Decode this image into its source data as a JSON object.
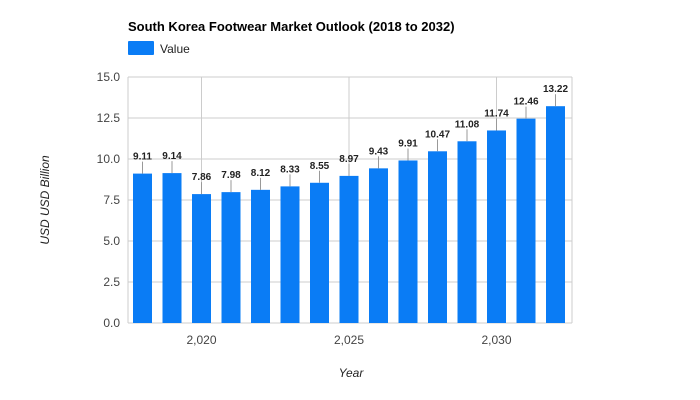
{
  "chart_data": {
    "type": "bar",
    "title": "South Korea Footwear Market Outlook (2018 to 2032)",
    "legend": {
      "label": "Value",
      "position": "top-left"
    },
    "xlabel": "Year",
    "ylabel": "USD USD Billion",
    "x": [
      2018,
      2019,
      2020,
      2021,
      2022,
      2023,
      2024,
      2025,
      2026,
      2027,
      2028,
      2029,
      2030,
      2031,
      2032
    ],
    "values": [
      9.11,
      9.14,
      7.86,
      7.98,
      8.12,
      8.33,
      8.55,
      8.97,
      9.43,
      9.91,
      10.47,
      11.08,
      11.74,
      12.46,
      13.22
    ],
    "data_labels": [
      "9.11",
      "9.14",
      "7.86",
      "7.98",
      "8.12",
      "8.33",
      "8.55",
      "8.97",
      "9.43",
      "9.91",
      "10.47",
      "11.08",
      "11.74",
      "12.46",
      "13.22"
    ],
    "ylim": [
      0,
      15
    ],
    "y_ticks": [
      0,
      2.5,
      5,
      7.5,
      10,
      12.5,
      15
    ],
    "y_tick_labels": [
      "0.0",
      "2.5",
      "5.0",
      "7.5",
      "10.0",
      "12.5",
      "15.0"
    ],
    "x_ticks": [
      2020,
      2025,
      2030
    ],
    "x_tick_labels": [
      "2,020",
      "2,025",
      "2,030"
    ],
    "grid": true,
    "colors": {
      "bar": "#0a7cf5",
      "grid": "#cccccc"
    }
  }
}
